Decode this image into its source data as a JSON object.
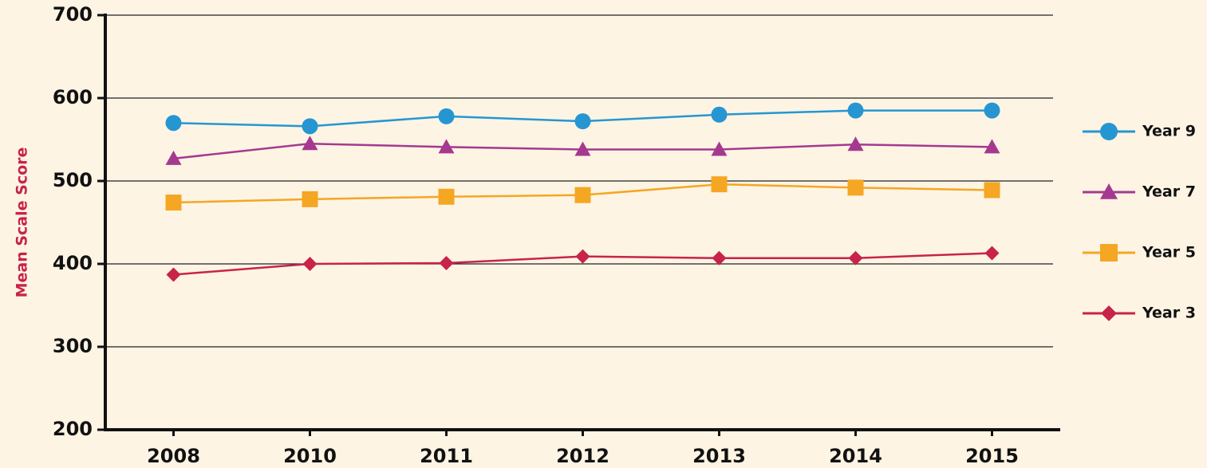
{
  "chart_data": {
    "type": "line",
    "y_label": "Mean Scale Score",
    "categories": [
      "2008",
      "2010",
      "2011",
      "2012",
      "2013",
      "2014",
      "2015"
    ],
    "series": [
      {
        "name": "Year 9",
        "color": "#2596d2",
        "marker": "circle",
        "values": [
          570,
          566,
          578,
          572,
          580,
          585,
          585
        ]
      },
      {
        "name": "Year 7",
        "color": "#a5398f",
        "marker": "triangle",
        "values": [
          527,
          545,
          541,
          538,
          538,
          544,
          541
        ]
      },
      {
        "name": "Year 5",
        "color": "#f5a623",
        "marker": "square",
        "values": [
          474,
          478,
          481,
          483,
          496,
          492,
          489
        ]
      },
      {
        "name": "Year 3",
        "color": "#c8234a",
        "marker": "diamond",
        "values": [
          387,
          400,
          401,
          409,
          407,
          407,
          413
        ]
      }
    ],
    "ylim": [
      200,
      700
    ],
    "yticks": [
      200,
      300,
      400,
      500,
      600,
      700
    ],
    "grid": true,
    "legend": "right"
  }
}
